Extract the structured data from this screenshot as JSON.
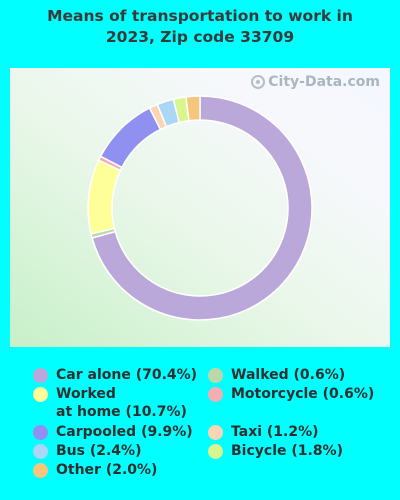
{
  "title_line1": "Means of transportation to work in",
  "title_line2": "2023, Zip code 33709",
  "watermark": "City-Data.com",
  "chart_data": {
    "type": "pie",
    "style": "donut",
    "title": "Means of transportation to work in 2023, Zip code 33709",
    "legend_position": "bottom",
    "slices": [
      {
        "label": "Car alone (70.4%)",
        "value": 70.4,
        "color": "#BBA8DA"
      },
      {
        "label": "Walked (0.6%)",
        "value": 0.6,
        "color": "#BDD8A8"
      },
      {
        "label": "Worked\nat home (10.7%)",
        "value": 10.7,
        "color": "#FFFF99"
      },
      {
        "label": "Motorcycle (0.6%)",
        "value": 0.6,
        "color": "#F2AEB2"
      },
      {
        "label": "Carpooled (9.9%)",
        "value": 9.9,
        "color": "#9090F0"
      },
      {
        "label": "Taxi (1.2%)",
        "value": 1.2,
        "color": "#FAD5B4"
      },
      {
        "label": "Bus (2.4%)",
        "value": 2.4,
        "color": "#ABD6F5"
      },
      {
        "label": "Bicycle (1.8%)",
        "value": 1.8,
        "color": "#D8F58E"
      },
      {
        "label": "Other (2.0%)",
        "value": 2.0,
        "color": "#F7C67C"
      }
    ]
  }
}
